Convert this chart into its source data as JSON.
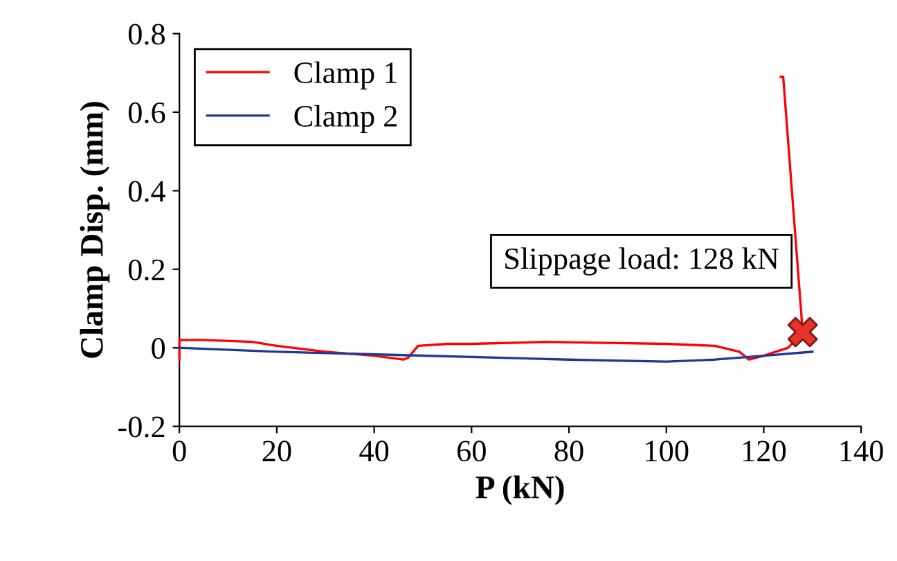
{
  "chart_data": {
    "type": "line",
    "xlabel": "P (kN)",
    "ylabel": "Clamp Disp. (mm)",
    "xlim": [
      0,
      140
    ],
    "ylim": [
      -0.2,
      0.8
    ],
    "xticks": [
      0,
      20,
      40,
      60,
      80,
      100,
      120,
      140
    ],
    "yticks": [
      {
        "value": -0.2,
        "label": "-0.2"
      },
      0,
      0.2,
      0.4,
      0.6,
      0.8
    ],
    "legend": "top left",
    "grid": false,
    "marker": "none",
    "line_style": "solid",
    "annotations": [
      "Slippage load: 128 kN"
    ],
    "series": [
      {
        "name": "Clamp 1",
        "color": "#ff0000",
        "x": [
          0,
          0,
          0.3,
          5,
          15,
          20,
          30,
          40,
          46,
          47,
          49,
          55,
          60,
          75,
          90,
          100,
          110,
          115,
          117,
          120,
          125,
          128,
          124,
          123.5
        ],
        "values": [
          -0.03,
          0.02,
          0.02,
          0.02,
          0.015,
          0.005,
          -0.01,
          -0.02,
          -0.03,
          -0.025,
          0.005,
          0.01,
          0.01,
          0.015,
          0.012,
          0.01,
          0.005,
          -0.01,
          -0.03,
          -0.02,
          0.0,
          0.04,
          0.69,
          0.69
        ]
      },
      {
        "name": "Clamp 2",
        "color": "#1f3a93",
        "x": [
          0,
          20,
          50,
          80,
          100,
          110,
          120,
          130
        ],
        "values": [
          0,
          -0.01,
          -0.02,
          -0.03,
          -0.035,
          -0.03,
          -0.02,
          -0.01
        ]
      },
      {
        "type": "scatter",
        "color": "#e8312a",
        "marker": "cross",
        "x": [
          128
        ],
        "values": [
          0.04
        ]
      }
    ]
  }
}
